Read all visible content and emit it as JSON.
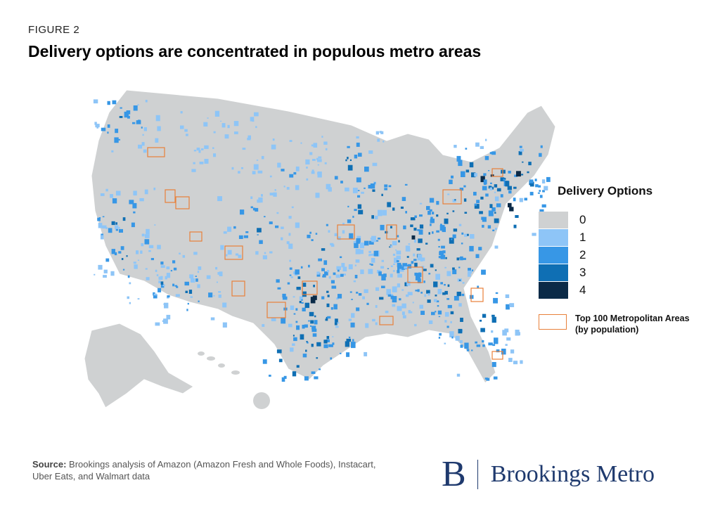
{
  "figure_label": "FIGURE 2",
  "title": "Delivery options are concentrated in populous metro areas",
  "legend": {
    "title": "Delivery Options",
    "items": [
      {
        "label": "0",
        "color": "#cfd1d2"
      },
      {
        "label": "1",
        "color": "#8ec5f7"
      },
      {
        "label": "2",
        "color": "#3797e6"
      },
      {
        "label": "3",
        "color": "#0f6fb4"
      },
      {
        "label": "4",
        "color": "#0b2a47"
      }
    ],
    "metro_label": "Top 100 Metropolitan Areas (by population)",
    "metro_color": "#e8803a"
  },
  "source": {
    "prefix": "Source:",
    "text": "Brookings analysis of Amazon (Amazon Fresh and Whole Foods), Instacart, Uber Eats, and Walmart data"
  },
  "logo": {
    "mark": "B",
    "text": "Brookings Metro"
  }
}
